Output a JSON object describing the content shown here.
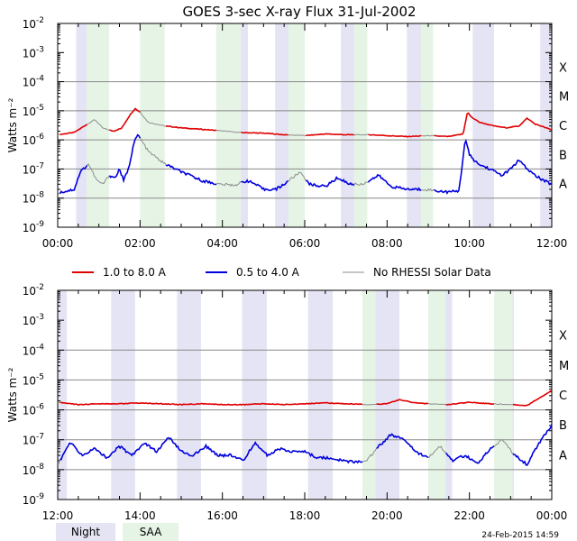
{
  "title": "GOES 3-sec X-ray Flux   31-Jul-2002",
  "timestamp": "24-Feb-2015 14:59",
  "legend": {
    "red": "1.0 to 8.0 A",
    "blue": "0.5 to 4.0 A",
    "gray": "No RHESSI Solar Data",
    "night": "Night",
    "saa": "SAA"
  },
  "colors": {
    "red": "#e00000",
    "blue": "#0000dd",
    "gray": "#8c8c8c",
    "night": "#e4e4f4",
    "saa": "#e6f4e6",
    "grid": "#888888"
  },
  "chart_data": [
    {
      "type": "line",
      "title": "GOES 3-sec X-ray Flux   31-Jul-2002",
      "ylabel": "Watts m⁻²",
      "yscale": "log",
      "ylim": [
        1e-09,
        0.01
      ],
      "xlim_hours": [
        0,
        12
      ],
      "x_ticks": [
        "00:00",
        "02:00",
        "04:00",
        "06:00",
        "08:00",
        "10:00",
        "12:00"
      ],
      "y_ticks": [
        {
          "base": "10",
          "exp": "-9"
        },
        {
          "base": "10",
          "exp": "-8"
        },
        {
          "base": "10",
          "exp": "-7"
        },
        {
          "base": "10",
          "exp": "-6"
        },
        {
          "base": "10",
          "exp": "-5"
        },
        {
          "base": "10",
          "exp": "-4"
        },
        {
          "base": "10",
          "exp": "-3"
        },
        {
          "base": "10",
          "exp": "-2"
        }
      ],
      "flare_classes": [
        "A",
        "B",
        "C",
        "M",
        "X"
      ],
      "night_hours": [
        [
          0.45,
          0.92
        ],
        [
          4.08,
          4.62
        ],
        [
          5.28,
          5.82
        ],
        [
          6.88,
          7.42
        ],
        [
          8.48,
          9.08
        ],
        [
          10.08,
          10.6
        ],
        [
          11.72,
          12.0
        ]
      ],
      "saa_hours": [
        [
          0.7,
          1.25
        ],
        [
          2.0,
          2.6
        ],
        [
          3.85,
          4.45
        ],
        [
          5.6,
          6.0
        ],
        [
          7.2,
          7.52
        ],
        [
          8.82,
          9.12
        ]
      ],
      "series": [
        {
          "name": "1.0 to 8.0 A",
          "color": "red",
          "hours": [
            0,
            0.4,
            0.65,
            0.9,
            1.1,
            1.35,
            1.55,
            1.75,
            1.88,
            2.0,
            2.2,
            2.6,
            3.0,
            3.5,
            3.9,
            4.4,
            5.0,
            5.5,
            6.0,
            6.5,
            7.0,
            7.6,
            8.0,
            8.5,
            9.0,
            9.5,
            9.85,
            9.95,
            10.05,
            10.25,
            10.6,
            10.9,
            11.2,
            11.4,
            11.6,
            12.0
          ],
          "values": [
            1.5e-06,
            1.8e-06,
            3e-06,
            5e-06,
            2.5e-06,
            2e-06,
            2.5e-06,
            7e-06,
            1.2e-05,
            9e-06,
            4e-06,
            3e-06,
            2.6e-06,
            2.3e-06,
            2.1e-06,
            1.8e-06,
            1.7e-06,
            1.5e-06,
            1.4e-06,
            1.6e-06,
            1.5e-06,
            1.5e-06,
            1.4e-06,
            1.3e-06,
            1.4e-06,
            1.3e-06,
            1.6e-06,
            9e-06,
            6e-06,
            4e-06,
            3e-06,
            2.6e-06,
            3e-06,
            5.5e-06,
            3.5e-06,
            2.2e-06
          ]
        },
        {
          "name": "0.5 to 4.0 A",
          "color": "blue",
          "hours": [
            0,
            0.4,
            0.55,
            0.75,
            0.95,
            1.1,
            1.25,
            1.4,
            1.5,
            1.6,
            1.72,
            1.85,
            1.95,
            2.2,
            2.6,
            3.0,
            3.5,
            3.9,
            4.3,
            4.6,
            4.8,
            5.0,
            5.3,
            5.5,
            5.7,
            5.9,
            6.1,
            6.5,
            6.8,
            7.1,
            7.4,
            7.8,
            8.1,
            8.5,
            8.9,
            9.2,
            9.5,
            9.75,
            9.9,
            10.0,
            10.2,
            10.5,
            10.8,
            11.0,
            11.2,
            11.4,
            11.6,
            11.8,
            12.0
          ],
          "values": [
            1.5e-08,
            2e-08,
            8e-08,
            1.5e-07,
            4e-08,
            3e-08,
            6e-08,
            5e-08,
            1e-07,
            4e-08,
            1e-07,
            8e-07,
            1.5e-06,
            4e-07,
            1.5e-07,
            8e-08,
            4e-08,
            3e-08,
            2.8e-08,
            4e-08,
            3e-08,
            2e-08,
            2e-08,
            3e-08,
            5e-08,
            8e-08,
            3e-08,
            2.5e-08,
            5e-08,
            3e-08,
            3e-08,
            6e-08,
            2.5e-08,
            2e-08,
            2e-08,
            1.8e-08,
            1.6e-08,
            1.8e-08,
            1.1e-06,
            3e-07,
            1.5e-07,
            1e-07,
            6e-08,
            1e-07,
            2e-07,
            1e-07,
            6e-08,
            4e-08,
            3e-08
          ]
        }
      ]
    },
    {
      "type": "line",
      "ylabel": "Watts m⁻²",
      "yscale": "log",
      "ylim": [
        1e-09,
        0.01
      ],
      "xlim_hours": [
        12,
        24
      ],
      "x_ticks": [
        "12:00",
        "14:00",
        "16:00",
        "18:00",
        "20:00",
        "22:00",
        "00:00"
      ],
      "y_ticks": [
        {
          "base": "10",
          "exp": "-9"
        },
        {
          "base": "10",
          "exp": "-8"
        },
        {
          "base": "10",
          "exp": "-7"
        },
        {
          "base": "10",
          "exp": "-6"
        },
        {
          "base": "10",
          "exp": "-5"
        },
        {
          "base": "10",
          "exp": "-4"
        },
        {
          "base": "10",
          "exp": "-3"
        },
        {
          "base": "10",
          "exp": "-2"
        }
      ],
      "flare_classes": [
        "A",
        "B",
        "C",
        "M",
        "X"
      ],
      "night_hours": [
        [
          12.0,
          12.22
        ],
        [
          13.3,
          13.88
        ],
        [
          14.9,
          15.48
        ],
        [
          16.48,
          17.08
        ],
        [
          18.08,
          18.68
        ],
        [
          19.68,
          20.3
        ],
        [
          21.28,
          21.58
        ],
        [
          22.92,
          23.08
        ]
      ],
      "saa_hours": [
        [
          19.4,
          19.72
        ],
        [
          21.0,
          21.42
        ],
        [
          22.6,
          23.05
        ]
      ],
      "series": [
        {
          "name": "1.0 to 8.0 A",
          "color": "red",
          "hours": [
            12.0,
            12.5,
            13.0,
            13.5,
            14.0,
            14.5,
            15.0,
            15.5,
            16.0,
            16.5,
            17.0,
            17.5,
            18.0,
            18.5,
            19.0,
            19.5,
            20.0,
            20.3,
            20.7,
            21.0,
            21.5,
            22.0,
            22.5,
            23.0,
            23.4,
            23.7,
            24.0
          ],
          "values": [
            1.8e-06,
            1.5e-06,
            1.6e-06,
            1.6e-06,
            1.7e-06,
            1.6e-06,
            1.5e-06,
            1.6e-06,
            1.5e-06,
            1.5e-06,
            1.6e-06,
            1.5e-06,
            1.6e-06,
            1.7e-06,
            1.6e-06,
            1.5e-06,
            1.6e-06,
            2.2e-06,
            1.7e-06,
            1.6e-06,
            1.5e-06,
            1.8e-06,
            1.6e-06,
            1.5e-06,
            1.4e-06,
            2.5e-06,
            4.5e-06
          ]
        },
        {
          "name": "0.5 to 4.0 A",
          "color": "blue",
          "hours": [
            12.0,
            12.3,
            12.6,
            12.9,
            13.2,
            13.5,
            13.8,
            14.1,
            14.4,
            14.7,
            15.0,
            15.3,
            15.6,
            15.9,
            16.2,
            16.5,
            16.8,
            17.1,
            17.4,
            17.7,
            18.0,
            18.3,
            18.6,
            18.9,
            19.2,
            19.5,
            19.8,
            20.1,
            20.4,
            20.7,
            21.0,
            21.3,
            21.6,
            21.9,
            22.2,
            22.5,
            22.8,
            23.1,
            23.4,
            23.7,
            24.0
          ],
          "values": [
            1.5e-08,
            8e-08,
            3e-08,
            5e-08,
            2.5e-08,
            6e-08,
            3e-08,
            8e-08,
            4e-08,
            1.2e-07,
            4e-08,
            3e-08,
            6e-08,
            3e-08,
            3e-08,
            2e-08,
            8e-08,
            3e-08,
            5e-08,
            4e-08,
            4e-08,
            2.5e-08,
            2.5e-08,
            2e-08,
            1.8e-08,
            2e-08,
            6e-08,
            1.5e-07,
            1e-07,
            4e-08,
            2.5e-08,
            6e-08,
            2e-08,
            3e-08,
            1.5e-08,
            5e-08,
            1e-07,
            3e-08,
            1.5e-08,
            8e-08,
            3e-07
          ]
        }
      ]
    }
  ]
}
